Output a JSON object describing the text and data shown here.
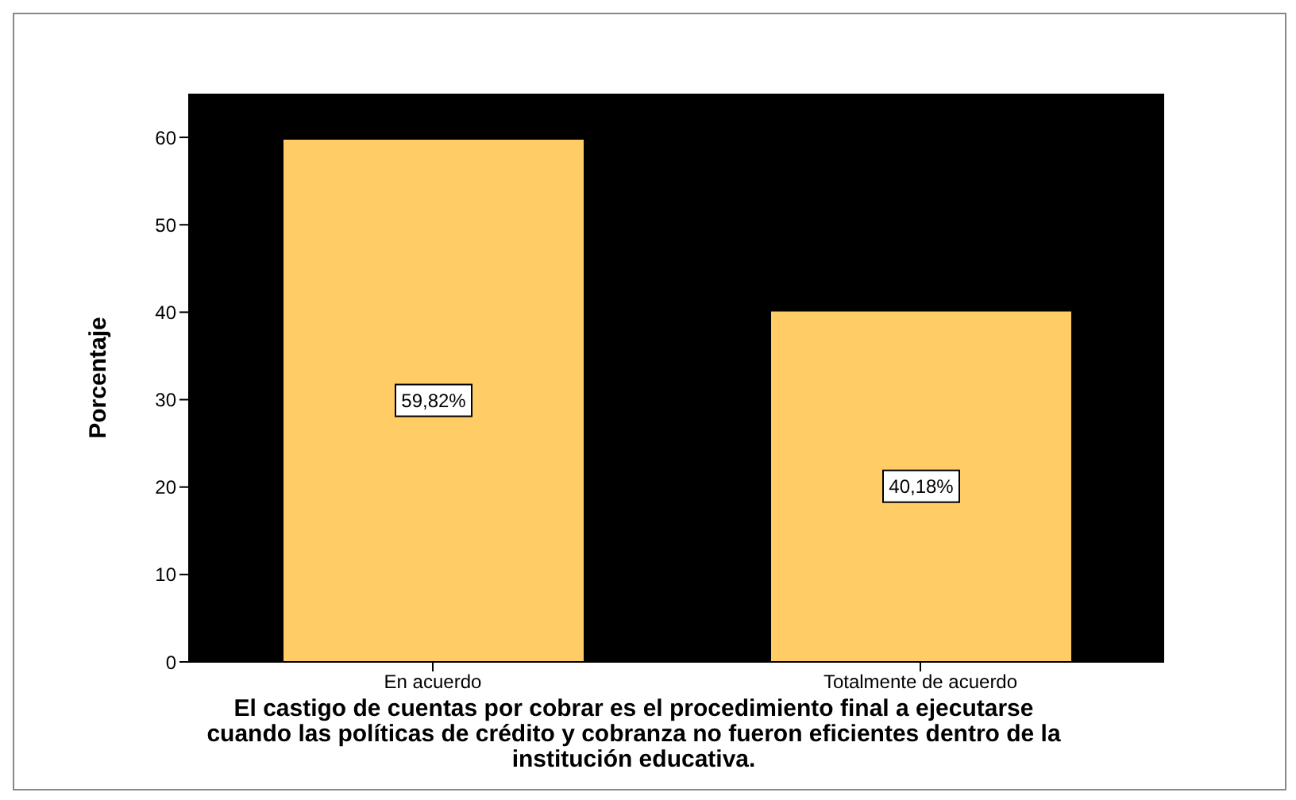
{
  "chart_data": {
    "type": "bar",
    "xlabel": "El castigo de cuentas por cobrar es el procedimiento final a ejecutarse cuando las políticas de crédito y cobranza no fueron eficientes dentro de la institución educativa.",
    "ylabel": "Porcentaje",
    "categories": [
      "En acuerdo",
      "Totalmente de acuerdo"
    ],
    "values": [
      59.82,
      40.18
    ],
    "value_labels": [
      "59,82%",
      "40,18%"
    ],
    "color": "#ffcc66",
    "ylim": [
      0,
      65
    ],
    "yticks": [
      0,
      10,
      20,
      30,
      40,
      50,
      60
    ],
    "grid": false
  }
}
